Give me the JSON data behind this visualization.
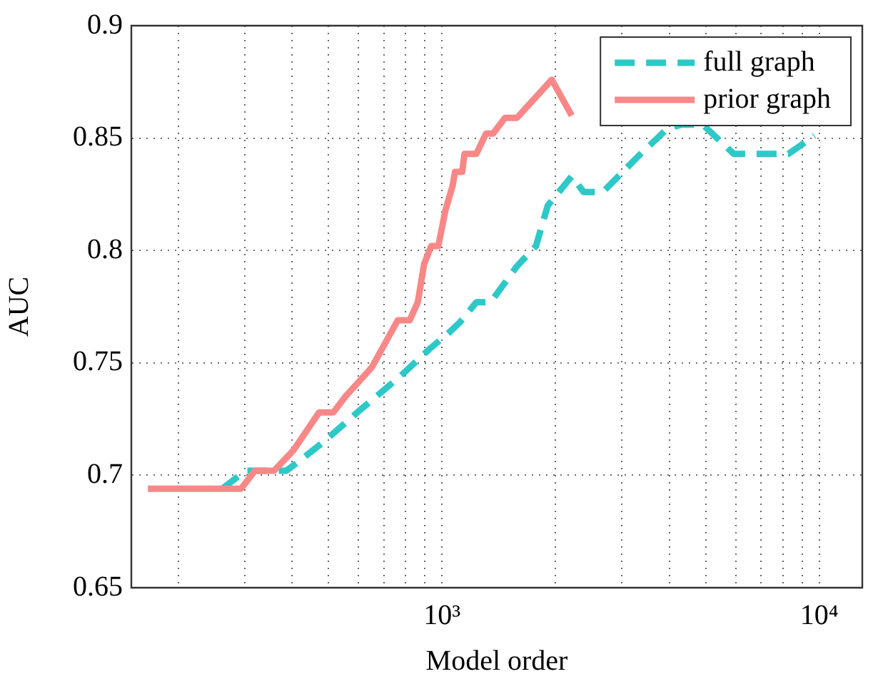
{
  "chart_data": {
    "type": "line",
    "xlabel": "Model order",
    "ylabel": "AUC",
    "log": "x",
    "grid": true,
    "legend": "top right",
    "marker": "none",
    "xlim": [
      150,
      13000
    ],
    "ylim": [
      0.65,
      0.9
    ],
    "xticks": [
      {
        "value": 200,
        "label": null
      },
      {
        "value": 300,
        "label": null
      },
      {
        "value": 400,
        "label": null
      },
      {
        "value": 500,
        "label": null
      },
      {
        "value": 600,
        "label": null
      },
      {
        "value": 700,
        "label": null
      },
      {
        "value": 800,
        "label": null
      },
      {
        "value": 900,
        "label": null
      },
      {
        "value": 1000,
        "label": "10³"
      },
      {
        "value": 2000,
        "label": null
      },
      {
        "value": 3000,
        "label": null
      },
      {
        "value": 4000,
        "label": null
      },
      {
        "value": 5000,
        "label": null
      },
      {
        "value": 6000,
        "label": null
      },
      {
        "value": 7000,
        "label": null
      },
      {
        "value": 8000,
        "label": null
      },
      {
        "value": 9000,
        "label": null
      },
      {
        "value": 10000,
        "label": "10⁴"
      }
    ],
    "yticks": [
      0.65,
      0.7,
      0.75,
      0.8,
      0.85,
      0.9
    ],
    "series": [
      {
        "name": "full graph",
        "color": "#2ec8c8",
        "line_style": "dashed",
        "x": [
          261,
          301,
          386,
          408,
          486,
          596,
          774,
          923,
          1036,
          1114,
          1233,
          1345,
          1579,
          1773,
          1906,
          2206,
          2373,
          2667,
          3314,
          3945,
          4305,
          4910,
          5929,
          8280,
          9720
        ],
        "values": [
          0.694,
          0.702,
          0.702,
          0.705,
          0.715,
          0.728,
          0.744,
          0.756,
          0.763,
          0.768,
          0.777,
          0.777,
          0.793,
          0.802,
          0.82,
          0.833,
          0.826,
          0.826,
          0.842,
          0.854,
          0.856,
          0.856,
          0.843,
          0.843,
          0.851
        ]
      },
      {
        "name": "prior graph",
        "color": "#f88888",
        "line_style": "solid",
        "x": [
          166,
          293,
          319,
          358,
          403,
          472,
          515,
          554,
          651,
          763,
          821,
          862,
          896,
          936,
          977,
          1021,
          1067,
          1082,
          1130,
          1147,
          1233,
          1307,
          1365,
          1468,
          1579,
          1953,
          2206
        ],
        "values": [
          0.694,
          0.694,
          0.702,
          0.702,
          0.711,
          0.728,
          0.728,
          0.735,
          0.748,
          0.769,
          0.769,
          0.777,
          0.794,
          0.802,
          0.802,
          0.818,
          0.829,
          0.835,
          0.835,
          0.843,
          0.843,
          0.852,
          0.852,
          0.859,
          0.859,
          0.876,
          0.86
        ]
      }
    ]
  }
}
